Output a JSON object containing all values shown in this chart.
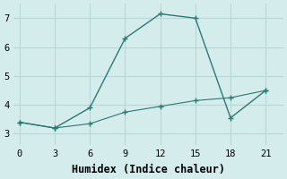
{
  "xlabel": "Humidex (Indice chaleur)",
  "background_color": "#d4ecec",
  "line_color": "#2a7a72",
  "grid_color": "#b8d8d8",
  "x_ticks": [
    0,
    3,
    6,
    9,
    12,
    15,
    18,
    21
  ],
  "xlim": [
    -0.5,
    22.5
  ],
  "ylim": [
    2.6,
    7.5
  ],
  "line1_x": [
    0,
    3,
    6,
    9,
    12,
    15,
    18,
    21
  ],
  "line1_y": [
    3.4,
    3.2,
    3.9,
    6.3,
    7.15,
    7.0,
    3.55,
    4.5
  ],
  "line2_x": [
    0,
    3,
    6,
    9,
    12,
    15,
    18,
    21
  ],
  "line2_y": [
    3.4,
    3.2,
    3.35,
    3.75,
    3.95,
    4.15,
    4.25,
    4.5
  ],
  "yticks": [
    3,
    4,
    5,
    6,
    7
  ],
  "font_family": "monospace",
  "tick_fontsize": 7.5,
  "xlabel_fontsize": 8.5
}
